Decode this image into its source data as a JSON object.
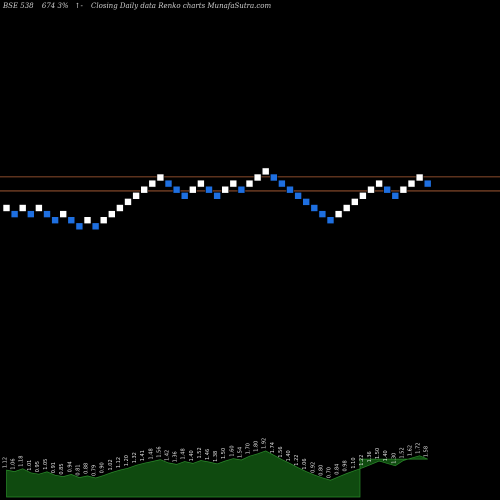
{
  "header": {
    "ticker": "BSE 538",
    "price_change": "674  3%",
    "arrow": "↑-",
    "description": "Closing Daily data  Renko  charts MunafaSutra.com"
  },
  "colors": {
    "background": "#000000",
    "up_brick": "#ffffff",
    "down_brick": "#1e6fe0",
    "reference_line": "#b8653a",
    "volume_fill": "#0f4a0f",
    "volume_stroke": "#2a8a2a"
  },
  "chart_data": {
    "type": "renko",
    "bricks": [
      {
        "dir": "up",
        "level": 0
      },
      {
        "dir": "down",
        "level": 1
      },
      {
        "dir": "up",
        "level": 0
      },
      {
        "dir": "down",
        "level": 1
      },
      {
        "dir": "up",
        "level": 0
      },
      {
        "dir": "down",
        "level": 1
      },
      {
        "dir": "down",
        "level": 2
      },
      {
        "dir": "up",
        "level": 1
      },
      {
        "dir": "down",
        "level": 2
      },
      {
        "dir": "down",
        "level": 3
      },
      {
        "dir": "up",
        "level": 2
      },
      {
        "dir": "down",
        "level": 3
      },
      {
        "dir": "up",
        "level": 2
      },
      {
        "dir": "up",
        "level": 1
      },
      {
        "dir": "up",
        "level": 0
      },
      {
        "dir": "up",
        "level": -1
      },
      {
        "dir": "up",
        "level": -2
      },
      {
        "dir": "up",
        "level": -3
      },
      {
        "dir": "up",
        "level": -4
      },
      {
        "dir": "up",
        "level": -5
      },
      {
        "dir": "down",
        "level": -4
      },
      {
        "dir": "down",
        "level": -3
      },
      {
        "dir": "down",
        "level": -2
      },
      {
        "dir": "up",
        "level": -3
      },
      {
        "dir": "up",
        "level": -4
      },
      {
        "dir": "down",
        "level": -3
      },
      {
        "dir": "down",
        "level": -2
      },
      {
        "dir": "up",
        "level": -3
      },
      {
        "dir": "up",
        "level": -4
      },
      {
        "dir": "down",
        "level": -3
      },
      {
        "dir": "up",
        "level": -4
      },
      {
        "dir": "up",
        "level": -5
      },
      {
        "dir": "up",
        "level": -6
      },
      {
        "dir": "down",
        "level": -5
      },
      {
        "dir": "down",
        "level": -4
      },
      {
        "dir": "down",
        "level": -3
      },
      {
        "dir": "down",
        "level": -2
      },
      {
        "dir": "down",
        "level": -1
      },
      {
        "dir": "down",
        "level": 0
      },
      {
        "dir": "down",
        "level": 1
      },
      {
        "dir": "down",
        "level": 2
      },
      {
        "dir": "up",
        "level": 1
      },
      {
        "dir": "up",
        "level": 0
      },
      {
        "dir": "up",
        "level": -1
      },
      {
        "dir": "up",
        "level": -2
      },
      {
        "dir": "up",
        "level": -3
      },
      {
        "dir": "up",
        "level": -4
      },
      {
        "dir": "down",
        "level": -3
      },
      {
        "dir": "down",
        "level": -2
      },
      {
        "dir": "up",
        "level": -3
      },
      {
        "dir": "up",
        "level": -4
      },
      {
        "dir": "up",
        "level": -5
      },
      {
        "dir": "down",
        "level": -4
      }
    ],
    "reference_levels": [
      -5.1,
      -2.8
    ],
    "volume": [
      1.12,
      1.06,
      1.18,
      1.01,
      0.95,
      1.05,
      0.91,
      0.85,
      0.94,
      0.81,
      0.88,
      0.79,
      0.9,
      1.02,
      1.12,
      1.2,
      1.32,
      1.41,
      1.48,
      1.56,
      1.42,
      1.36,
      1.48,
      1.4,
      1.52,
      1.46,
      1.38,
      1.5,
      1.6,
      1.54,
      1.7,
      1.8,
      1.92,
      1.74,
      1.56,
      1.4,
      1.22,
      1.06,
      0.92,
      0.8,
      0.7,
      0.84,
      0.98,
      1.1,
      1.22,
      1.36,
      1.5,
      1.4,
      1.3,
      1.52,
      1.62,
      1.72,
      1.58
    ],
    "volume_labels": [
      "1.12",
      "1.06",
      "1.18",
      "1.01",
      "0.95",
      "1.05",
      "0.91",
      "0.85",
      "0.94",
      "0.81",
      "0.88",
      "0.79",
      "0.90",
      "1.02",
      "1.12",
      "1.20",
      "1.32",
      "1.41",
      "1.48",
      "1.56",
      "1.42",
      "1.36",
      "1.48",
      "1.40",
      "1.52",
      "1.46",
      "1.38",
      "1.50",
      "1.60",
      "1.54",
      "1.70",
      "1.80",
      "1.92",
      "1.74",
      "1.56",
      "1.40",
      "1.22",
      "1.06",
      "0.92",
      "0.80",
      "0.70",
      "0.84",
      "0.98",
      "1.10",
      "1.22",
      "1.36",
      "1.50",
      "1.40",
      "1.30",
      "1.52",
      "1.62",
      "1.72",
      "1.58"
    ]
  }
}
